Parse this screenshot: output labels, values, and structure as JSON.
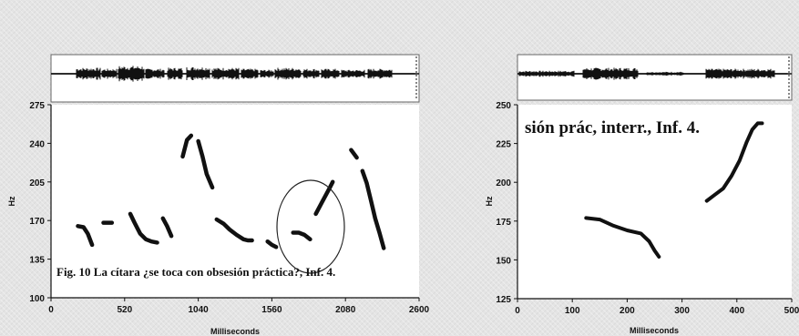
{
  "chart_data": [
    {
      "type": "line",
      "caption": "Fig. 10 La cítara ¿se toca con obsesión práctica?, Inf. 4.",
      "xlabel": "Milliseconds",
      "ylabel": "Hz",
      "xlim": [
        0,
        2600
      ],
      "ylim": [
        100,
        275
      ],
      "xticks": [
        "0",
        "520",
        "1040",
        "1560",
        "2080",
        "2600"
      ],
      "yticks": [
        "100",
        "135",
        "170",
        "205",
        "240",
        "275"
      ],
      "annotation": "ellipse around rising contour near 1800–2000 ms",
      "segments": [
        {
          "x": [
            190,
            230,
            260,
            290
          ],
          "y": [
            165,
            164,
            158,
            148
          ]
        },
        {
          "x": [
            370,
            430
          ],
          "y": [
            168,
            168
          ]
        },
        {
          "x": [
            560,
            590,
            630,
            670,
            710,
            750
          ],
          "y": [
            176,
            168,
            158,
            153,
            151,
            150
          ]
        },
        {
          "x": [
            790,
            820,
            850
          ],
          "y": [
            172,
            165,
            156
          ]
        },
        {
          "x": [
            930,
            960,
            990
          ],
          "y": [
            228,
            243,
            247
          ]
        },
        {
          "x": [
            1040,
            1070,
            1100,
            1140
          ],
          "y": [
            242,
            228,
            212,
            200
          ]
        },
        {
          "x": [
            1170,
            1220,
            1260,
            1310,
            1360,
            1390,
            1420
          ],
          "y": [
            171,
            167,
            162,
            157,
            153,
            152,
            152
          ]
        },
        {
          "x": [
            1530,
            1560,
            1590
          ],
          "y": [
            151,
            148,
            146
          ]
        },
        {
          "x": [
            1710,
            1750,
            1790,
            1830
          ],
          "y": [
            159,
            159,
            157,
            153
          ]
        },
        {
          "x": [
            1870,
            1920,
            1970,
            1990
          ],
          "y": [
            176,
            188,
            200,
            205
          ]
        },
        {
          "x": [
            2120,
            2160
          ],
          "y": [
            234,
            227
          ]
        },
        {
          "x": [
            2200,
            2230,
            2260,
            2290,
            2320,
            2350
          ],
          "y": [
            215,
            204,
            188,
            172,
            159,
            145
          ]
        }
      ]
    },
    {
      "type": "line",
      "caption": "sión prác, interr., Inf. 4.",
      "xlabel": "Milliseconds",
      "ylabel": "Hz",
      "xlim": [
        0,
        500
      ],
      "ylim": [
        125,
        250
      ],
      "xticks": [
        "0",
        "100",
        "200",
        "300",
        "400",
        "500"
      ],
      "yticks": [
        "125",
        "150",
        "175",
        "200",
        "225",
        "250"
      ],
      "segments": [
        {
          "x": [
            125,
            150,
            175,
            200,
            225,
            240,
            250,
            258
          ],
          "y": [
            177,
            176,
            172,
            169,
            167,
            162,
            156,
            152
          ]
        },
        {
          "x": [
            345,
            360,
            375,
            390,
            405,
            418,
            428,
            438,
            446
          ],
          "y": [
            188,
            192,
            196,
            204,
            214,
            226,
            234,
            238,
            238
          ]
        }
      ]
    }
  ]
}
